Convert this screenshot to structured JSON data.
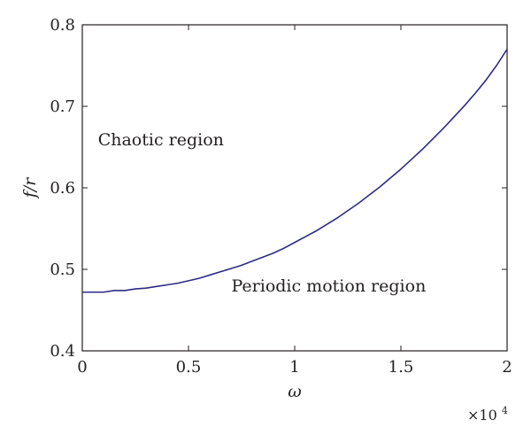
{
  "chart_data": {
    "type": "line",
    "title": "",
    "xlabel": "ω",
    "ylabel": "f/r",
    "xlim": [
      0,
      2
    ],
    "ylim": [
      0.4,
      0.8
    ],
    "x_multiplier": {
      "base": "×10",
      "exponent": "4"
    },
    "grid": false,
    "x_ticks": [
      0,
      0.5,
      1,
      1.5,
      2
    ],
    "x_tick_labels": [
      "0",
      "0.5",
      "1",
      "1.5",
      "2"
    ],
    "y_ticks": [
      0.4,
      0.5,
      0.6,
      0.7,
      0.8
    ],
    "y_tick_labels": [
      "0.4",
      "0.5",
      "0.6",
      "0.7",
      "0.8"
    ],
    "annotations": [
      {
        "text": "Chaotic region",
        "x": 0.37,
        "y": 0.652
      },
      {
        "text": "Periodic motion region",
        "x": 1.16,
        "y": 0.473
      }
    ],
    "series": [
      {
        "color": "#2e2a86",
        "x": [
          0.0,
          0.05,
          0.1,
          0.15,
          0.2,
          0.25,
          0.3,
          0.35,
          0.4,
          0.45,
          0.5,
          0.55,
          0.6,
          0.65,
          0.7,
          0.75,
          0.8,
          0.85,
          0.9,
          0.95,
          1.0,
          1.05,
          1.1,
          1.15,
          1.2,
          1.25,
          1.3,
          1.35,
          1.4,
          1.45,
          1.5,
          1.55,
          1.6,
          1.65,
          1.7,
          1.75,
          1.8,
          1.85,
          1.9,
          1.95,
          2.0
        ],
        "y": [
          0.472,
          0.472,
          0.472,
          0.474,
          0.474,
          0.476,
          0.477,
          0.479,
          0.481,
          0.483,
          0.486,
          0.489,
          0.493,
          0.497,
          0.501,
          0.505,
          0.51,
          0.515,
          0.52,
          0.526,
          0.533,
          0.54,
          0.547,
          0.555,
          0.563,
          0.572,
          0.581,
          0.591,
          0.601,
          0.612,
          0.623,
          0.635,
          0.647,
          0.66,
          0.673,
          0.687,
          0.701,
          0.716,
          0.732,
          0.75,
          0.77
        ]
      }
    ]
  }
}
